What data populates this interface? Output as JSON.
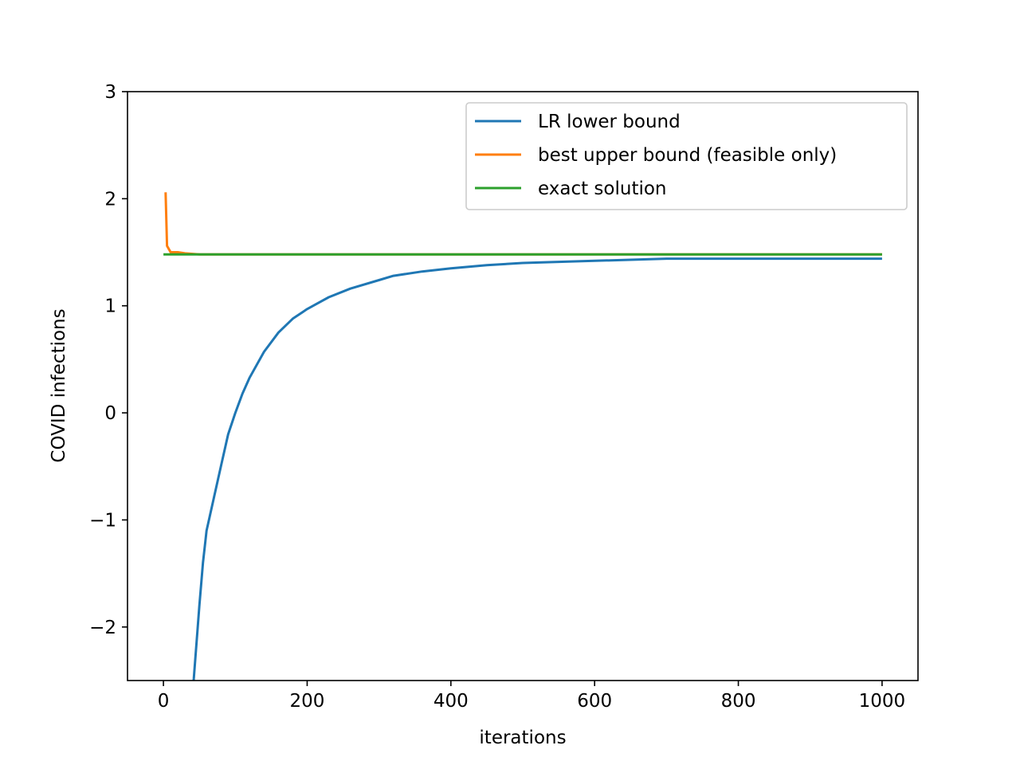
{
  "chart_data": {
    "type": "line",
    "title": "",
    "xlabel": "iterations",
    "ylabel": "COVID infections",
    "xlim": [
      -50,
      1050
    ],
    "ylim": [
      -2.5,
      3
    ],
    "xticks": [
      0,
      200,
      400,
      600,
      800,
      1000
    ],
    "yticks": [
      -2,
      -1,
      0,
      1,
      2,
      3
    ],
    "xtick_labels": [
      "0",
      "200",
      "400",
      "600",
      "800",
      "1000"
    ],
    "ytick_labels": [
      "−2",
      "−1",
      "0",
      "1",
      "2",
      "3"
    ],
    "grid": false,
    "legend_position": "upper right",
    "series": [
      {
        "name": "LR lower bound",
        "color": "#1f77b4",
        "x": [
          42,
          50,
          55,
          60,
          70,
          80,
          90,
          100,
          110,
          120,
          140,
          160,
          180,
          200,
          230,
          260,
          300,
          320,
          360,
          400,
          450,
          500,
          600,
          700,
          800,
          900,
          1000
        ],
        "y": [
          -2.5,
          -1.8,
          -1.4,
          -1.1,
          -0.8,
          -0.5,
          -0.2,
          0.0,
          0.18,
          0.33,
          0.57,
          0.75,
          0.88,
          0.97,
          1.08,
          1.16,
          1.24,
          1.28,
          1.32,
          1.35,
          1.38,
          1.4,
          1.42,
          1.44,
          1.44,
          1.44,
          1.44
        ]
      },
      {
        "name": "best upper bound (feasible only)",
        "color": "#ff7f0e",
        "x": [
          3,
          5,
          10,
          20,
          30,
          50,
          1000
        ],
        "y": [
          2.06,
          1.56,
          1.5,
          1.5,
          1.49,
          1.48,
          1.48
        ]
      },
      {
        "name": "exact solution",
        "color": "#2ca02c",
        "x": [
          0,
          1000
        ],
        "y": [
          1.48,
          1.48
        ]
      }
    ]
  }
}
